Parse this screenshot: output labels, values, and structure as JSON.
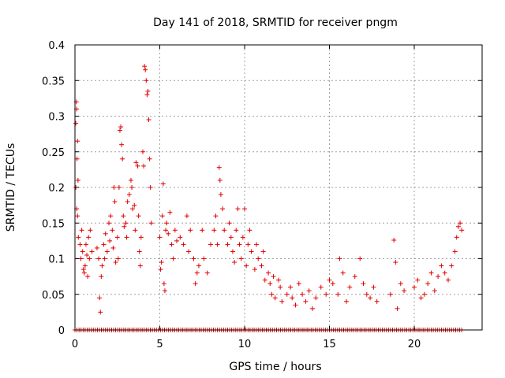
{
  "chart_data": {
    "type": "scatter",
    "title": "Day 141 of 2018, SRMTID for receiver pngm",
    "xlabel": "GPS time / hours",
    "ylabel": "SRMTID / TECUs",
    "xlim": [
      0,
      24
    ],
    "ylim": [
      0,
      0.4
    ],
    "x_ticks": [
      0,
      5,
      10,
      15,
      20
    ],
    "x_tick_labels": [
      "0",
      "5",
      "10",
      "15",
      "20"
    ],
    "y_ticks": [
      0,
      0.05,
      0.1,
      0.15,
      0.2,
      0.25,
      0.3,
      0.35,
      0.4
    ],
    "y_tick_labels": [
      "0",
      "0.05",
      "0.1",
      "0.15",
      "0.2",
      "0.25",
      "0.3",
      "0.35",
      "0.4"
    ],
    "grid": true,
    "marker": "plus",
    "color": "#e00000",
    "zero_baseline_range": [
      0,
      22.8
    ],
    "series": [
      {
        "name": "SRMTID",
        "points": [
          [
            0.05,
            0.29
          ],
          [
            0.08,
            0.32
          ],
          [
            0.1,
            0.31
          ],
          [
            0.12,
            0.24
          ],
          [
            0.15,
            0.265
          ],
          [
            0.18,
            0.21
          ],
          [
            0.05,
            0.2
          ],
          [
            0.1,
            0.17
          ],
          [
            0.15,
            0.16
          ],
          [
            0.2,
            0.13
          ],
          [
            0.3,
            0.12
          ],
          [
            0.35,
            0.1
          ],
          [
            0.4,
            0.14
          ],
          [
            0.45,
            0.11
          ],
          [
            0.5,
            0.085
          ],
          [
            0.55,
            0.08
          ],
          [
            0.6,
            0.09
          ],
          [
            0.65,
            0.12
          ],
          [
            0.7,
            0.105
          ],
          [
            0.75,
            0.075
          ],
          [
            0.8,
            0.13
          ],
          [
            0.85,
            0.1
          ],
          [
            0.9,
            0.14
          ],
          [
            1.0,
            0.11
          ],
          [
            1.3,
            0.115
          ],
          [
            1.4,
            0.1
          ],
          [
            1.45,
            0.045
          ],
          [
            1.5,
            0.025
          ],
          [
            1.55,
            0.075
          ],
          [
            1.6,
            0.09
          ],
          [
            1.7,
            0.12
          ],
          [
            1.75,
            0.1
          ],
          [
            1.8,
            0.135
          ],
          [
            1.9,
            0.11
          ],
          [
            2.0,
            0.15
          ],
          [
            2.05,
            0.125
          ],
          [
            2.1,
            0.16
          ],
          [
            2.2,
            0.14
          ],
          [
            2.25,
            0.115
          ],
          [
            2.3,
            0.2
          ],
          [
            2.35,
            0.18
          ],
          [
            2.4,
            0.095
          ],
          [
            2.5,
            0.13
          ],
          [
            2.55,
            0.1
          ],
          [
            2.6,
            0.2
          ],
          [
            2.65,
            0.28
          ],
          [
            2.7,
            0.285
          ],
          [
            2.75,
            0.26
          ],
          [
            2.8,
            0.24
          ],
          [
            2.85,
            0.16
          ],
          [
            2.9,
            0.145
          ],
          [
            3.0,
            0.15
          ],
          [
            3.05,
            0.13
          ],
          [
            3.1,
            0.18
          ],
          [
            3.2,
            0.19
          ],
          [
            3.3,
            0.21
          ],
          [
            3.35,
            0.2
          ],
          [
            3.4,
            0.17
          ],
          [
            3.5,
            0.175
          ],
          [
            3.55,
            0.14
          ],
          [
            3.6,
            0.235
          ],
          [
            3.7,
            0.23
          ],
          [
            3.75,
            0.16
          ],
          [
            3.8,
            0.11
          ],
          [
            3.85,
            0.09
          ],
          [
            3.9,
            0.13
          ],
          [
            4.0,
            0.25
          ],
          [
            4.05,
            0.23
          ],
          [
            4.1,
            0.37
          ],
          [
            4.15,
            0.365
          ],
          [
            4.2,
            0.35
          ],
          [
            4.25,
            0.33
          ],
          [
            4.3,
            0.335
          ],
          [
            4.35,
            0.295
          ],
          [
            4.4,
            0.24
          ],
          [
            4.45,
            0.2
          ],
          [
            4.5,
            0.15
          ],
          [
            5.0,
            0.13
          ],
          [
            5.05,
            0.085
          ],
          [
            5.1,
            0.095
          ],
          [
            5.15,
            0.16
          ],
          [
            5.2,
            0.205
          ],
          [
            5.25,
            0.065
          ],
          [
            5.3,
            0.055
          ],
          [
            5.35,
            0.14
          ],
          [
            5.4,
            0.15
          ],
          [
            5.5,
            0.135
          ],
          [
            5.6,
            0.165
          ],
          [
            5.7,
            0.12
          ],
          [
            5.8,
            0.1
          ],
          [
            5.9,
            0.14
          ],
          [
            6.0,
            0.125
          ],
          [
            6.2,
            0.13
          ],
          [
            6.4,
            0.12
          ],
          [
            6.6,
            0.16
          ],
          [
            6.7,
            0.11
          ],
          [
            6.8,
            0.14
          ],
          [
            7.0,
            0.1
          ],
          [
            7.1,
            0.065
          ],
          [
            7.2,
            0.08
          ],
          [
            7.3,
            0.09
          ],
          [
            7.5,
            0.14
          ],
          [
            7.6,
            0.1
          ],
          [
            7.8,
            0.08
          ],
          [
            8.0,
            0.12
          ],
          [
            8.2,
            0.14
          ],
          [
            8.3,
            0.16
          ],
          [
            8.4,
            0.12
          ],
          [
            8.5,
            0.228
          ],
          [
            8.55,
            0.21
          ],
          [
            8.6,
            0.19
          ],
          [
            8.7,
            0.17
          ],
          [
            8.8,
            0.14
          ],
          [
            9.0,
            0.12
          ],
          [
            9.1,
            0.15
          ],
          [
            9.2,
            0.13
          ],
          [
            9.3,
            0.11
          ],
          [
            9.4,
            0.095
          ],
          [
            9.5,
            0.14
          ],
          [
            9.6,
            0.17
          ],
          [
            9.7,
            0.12
          ],
          [
            9.8,
            0.1
          ],
          [
            9.9,
            0.13
          ],
          [
            10.0,
            0.17
          ],
          [
            10.1,
            0.09
          ],
          [
            10.2,
            0.12
          ],
          [
            10.3,
            0.14
          ],
          [
            10.4,
            0.11
          ],
          [
            10.6,
            0.085
          ],
          [
            10.7,
            0.12
          ],
          [
            10.8,
            0.1
          ],
          [
            11.0,
            0.09
          ],
          [
            11.1,
            0.11
          ],
          [
            11.2,
            0.07
          ],
          [
            11.4,
            0.08
          ],
          [
            11.5,
            0.065
          ],
          [
            11.6,
            0.05
          ],
          [
            11.7,
            0.075
          ],
          [
            11.8,
            0.045
          ],
          [
            12.0,
            0.07
          ],
          [
            12.1,
            0.06
          ],
          [
            12.2,
            0.04
          ],
          [
            12.5,
            0.05
          ],
          [
            12.7,
            0.06
          ],
          [
            12.8,
            0.045
          ],
          [
            13.0,
            0.035
          ],
          [
            13.2,
            0.065
          ],
          [
            13.4,
            0.05
          ],
          [
            13.6,
            0.04
          ],
          [
            13.8,
            0.055
          ],
          [
            14.0,
            0.03
          ],
          [
            14.2,
            0.045
          ],
          [
            14.5,
            0.06
          ],
          [
            14.8,
            0.05
          ],
          [
            15.0,
            0.07
          ],
          [
            15.2,
            0.065
          ],
          [
            15.5,
            0.05
          ],
          [
            15.6,
            0.1
          ],
          [
            15.8,
            0.08
          ],
          [
            16.0,
            0.04
          ],
          [
            16.2,
            0.06
          ],
          [
            16.5,
            0.075
          ],
          [
            16.8,
            0.1
          ],
          [
            17.0,
            0.065
          ],
          [
            17.2,
            0.05
          ],
          [
            17.4,
            0.045
          ],
          [
            17.6,
            0.06
          ],
          [
            17.8,
            0.04
          ],
          [
            18.6,
            0.05
          ],
          [
            18.8,
            0.126
          ],
          [
            18.9,
            0.095
          ],
          [
            19.0,
            0.03
          ],
          [
            19.2,
            0.065
          ],
          [
            19.4,
            0.055
          ],
          [
            20.0,
            0.06
          ],
          [
            20.2,
            0.07
          ],
          [
            20.4,
            0.045
          ],
          [
            20.6,
            0.05
          ],
          [
            20.8,
            0.065
          ],
          [
            21.0,
            0.08
          ],
          [
            21.2,
            0.055
          ],
          [
            21.4,
            0.075
          ],
          [
            21.6,
            0.09
          ],
          [
            21.8,
            0.08
          ],
          [
            22.0,
            0.07
          ],
          [
            22.2,
            0.09
          ],
          [
            22.4,
            0.11
          ],
          [
            22.5,
            0.13
          ],
          [
            22.6,
            0.145
          ],
          [
            22.7,
            0.15
          ],
          [
            22.8,
            0.14
          ]
        ]
      }
    ]
  }
}
